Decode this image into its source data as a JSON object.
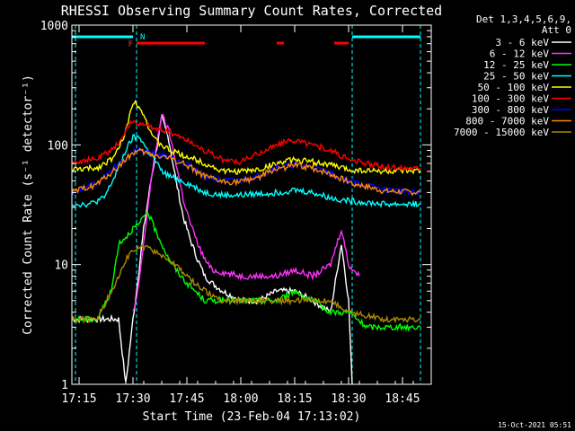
{
  "chart_data": {
    "type": "line",
    "title": "RHESSI Observing Summary Count Rates, Corrected",
    "xlabel": "Start Time (23-Feb-04 17:13:02)",
    "ylabel": "Corrected Count Rate (s⁻¹ detector⁻¹)",
    "y_scale": "log",
    "ylim": [
      1,
      1000
    ],
    "xlim": [
      "17:13",
      "18:53"
    ],
    "x_ticks": [
      "17:15",
      "17:30",
      "17:45",
      "18:00",
      "18:15",
      "18:30",
      "18:45"
    ],
    "y_ticks": [
      "1",
      "10",
      "100",
      "1000"
    ],
    "grid": false,
    "legend_position": "right",
    "legend_header": [
      "Det 1,3,4,5,6,9,",
      "Att 0"
    ],
    "footer_date": "15-Oct-2021 05:51",
    "bands": {
      "N_label": "N",
      "F_label": "F",
      "night": [
        [
          "17:13",
          "17:30"
        ],
        [
          "18:31",
          "18:50"
        ]
      ],
      "flare": [
        [
          "17:31",
          "17:50"
        ],
        [
          "18:10",
          "18:12"
        ],
        [
          "18:26",
          "18:30"
        ]
      ]
    },
    "boundaries": [
      "17:14",
      "17:31",
      "18:31",
      "18:50"
    ],
    "series": [
      {
        "name": "3 - 6 keV",
        "color": "#ffffff",
        "points": [
          [
            "17:13",
            3.5
          ],
          [
            "17:26",
            3.5
          ],
          [
            "17:28",
            1
          ],
          [
            "17:30",
            3.5
          ],
          [
            "17:31",
            6
          ],
          [
            "17:33",
            20
          ],
          [
            "17:35",
            50
          ],
          [
            "17:37",
            110
          ],
          [
            "17:38",
            170
          ],
          [
            "17:40",
            110
          ],
          [
            "17:42",
            50
          ],
          [
            "17:44",
            25
          ],
          [
            "17:46",
            16
          ],
          [
            "17:48",
            11
          ],
          [
            "17:50",
            8
          ],
          [
            "17:52",
            7
          ],
          [
            "17:55",
            6
          ],
          [
            "18:00",
            5
          ],
          [
            "18:05",
            5
          ],
          [
            "18:10",
            6
          ],
          [
            "18:15",
            6
          ],
          [
            "18:20",
            5
          ],
          [
            "18:25",
            4
          ],
          [
            "18:28",
            15
          ],
          [
            "18:30",
            5
          ],
          [
            "18:31",
            1
          ]
        ]
      },
      {
        "name": "6 - 12 keV",
        "color": "#ff30ff",
        "points": [
          [
            "17:30",
            4
          ],
          [
            "17:31",
            5
          ],
          [
            "17:33",
            15
          ],
          [
            "17:35",
            50
          ],
          [
            "17:37",
            120
          ],
          [
            "17:38",
            180
          ],
          [
            "17:40",
            130
          ],
          [
            "17:42",
            70
          ],
          [
            "17:44",
            35
          ],
          [
            "17:46",
            22
          ],
          [
            "17:48",
            15
          ],
          [
            "17:50",
            11
          ],
          [
            "17:52",
            9
          ],
          [
            "18:00",
            8
          ],
          [
            "18:10",
            8
          ],
          [
            "18:15",
            9
          ],
          [
            "18:20",
            8
          ],
          [
            "18:25",
            10
          ],
          [
            "18:28",
            20
          ],
          [
            "18:30",
            10
          ],
          [
            "18:33",
            8
          ]
        ]
      },
      {
        "name": "12 - 25 keV",
        "color": "#00ff00",
        "points": [
          [
            "17:13",
            3.5
          ],
          [
            "17:20",
            3.5
          ],
          [
            "17:24",
            6
          ],
          [
            "17:26",
            15
          ],
          [
            "17:28",
            17
          ],
          [
            "17:30",
            20
          ],
          [
            "17:32",
            22
          ],
          [
            "17:34",
            28
          ],
          [
            "17:36",
            20
          ],
          [
            "17:38",
            15
          ],
          [
            "17:40",
            11
          ],
          [
            "17:42",
            9
          ],
          [
            "17:45",
            7
          ],
          [
            "17:50",
            5
          ],
          [
            "17:55",
            5
          ],
          [
            "18:00",
            5
          ],
          [
            "18:10",
            5
          ],
          [
            "18:15",
            6
          ],
          [
            "18:20",
            5
          ],
          [
            "18:25",
            4
          ],
          [
            "18:30",
            4
          ],
          [
            "18:35",
            3
          ],
          [
            "18:40",
            3
          ],
          [
            "18:50",
            3
          ]
        ]
      },
      {
        "name": "25 - 50 keV",
        "color": "#00ffff",
        "points": [
          [
            "17:13",
            32
          ],
          [
            "17:18",
            32
          ],
          [
            "17:22",
            36
          ],
          [
            "17:25",
            55
          ],
          [
            "17:28",
            90
          ],
          [
            "17:30",
            115
          ],
          [
            "17:32",
            115
          ],
          [
            "17:34",
            90
          ],
          [
            "17:36",
            75
          ],
          [
            "17:38",
            60
          ],
          [
            "17:40",
            55
          ],
          [
            "17:45",
            48
          ],
          [
            "17:50",
            40
          ],
          [
            "17:55",
            38
          ],
          [
            "18:00",
            38
          ],
          [
            "18:10",
            40
          ],
          [
            "18:15",
            42
          ],
          [
            "18:20",
            40
          ],
          [
            "18:25",
            36
          ],
          [
            "18:30",
            34
          ],
          [
            "18:40",
            32
          ],
          [
            "18:50",
            32
          ]
        ]
      },
      {
        "name": "50 - 100 keV",
        "color": "#ffff00",
        "points": [
          [
            "17:13",
            62
          ],
          [
            "17:20",
            64
          ],
          [
            "17:25",
            80
          ],
          [
            "17:28",
            130
          ],
          [
            "17:30",
            230
          ],
          [
            "17:32",
            210
          ],
          [
            "17:34",
            150
          ],
          [
            "17:36",
            110
          ],
          [
            "17:40",
            90
          ],
          [
            "17:45",
            80
          ],
          [
            "17:50",
            70
          ],
          [
            "17:55",
            60
          ],
          [
            "18:00",
            60
          ],
          [
            "18:05",
            62
          ],
          [
            "18:10",
            70
          ],
          [
            "18:15",
            75
          ],
          [
            "18:20",
            72
          ],
          [
            "18:25",
            68
          ],
          [
            "18:30",
            62
          ],
          [
            "18:40",
            60
          ],
          [
            "18:50",
            60
          ]
        ]
      },
      {
        "name": "100 - 300 keV",
        "color": "#ff0000",
        "points": [
          [
            "17:13",
            72
          ],
          [
            "17:20",
            76
          ],
          [
            "17:25",
            95
          ],
          [
            "17:28",
            130
          ],
          [
            "17:30",
            160
          ],
          [
            "17:32",
            150
          ],
          [
            "17:35",
            140
          ],
          [
            "17:40",
            130
          ],
          [
            "17:45",
            110
          ],
          [
            "17:50",
            90
          ],
          [
            "17:55",
            75
          ],
          [
            "18:00",
            72
          ],
          [
            "18:05",
            85
          ],
          [
            "18:10",
            100
          ],
          [
            "18:15",
            110
          ],
          [
            "18:20",
            100
          ],
          [
            "18:25",
            90
          ],
          [
            "18:30",
            75
          ],
          [
            "18:40",
            65
          ],
          [
            "18:50",
            64
          ]
        ]
      },
      {
        "name": "300 - 800 keV",
        "color": "#0000ff",
        "points": [
          [
            "17:13",
            40
          ],
          [
            "17:20",
            48
          ],
          [
            "17:25",
            65
          ],
          [
            "17:30",
            88
          ],
          [
            "17:32",
            90
          ],
          [
            "17:35",
            85
          ],
          [
            "17:40",
            80
          ],
          [
            "17:45",
            70
          ],
          [
            "17:50",
            55
          ],
          [
            "17:55",
            50
          ],
          [
            "18:00",
            50
          ],
          [
            "18:05",
            55
          ],
          [
            "18:10",
            65
          ],
          [
            "18:15",
            68
          ],
          [
            "18:20",
            65
          ],
          [
            "18:25",
            58
          ],
          [
            "18:30",
            50
          ],
          [
            "18:40",
            42
          ],
          [
            "18:50",
            40
          ]
        ]
      },
      {
        "name": "800 - 7000 keV",
        "color": "#ff8800",
        "points": [
          [
            "17:13",
            40
          ],
          [
            "17:20",
            47
          ],
          [
            "17:25",
            62
          ],
          [
            "17:30",
            86
          ],
          [
            "17:32",
            88
          ],
          [
            "17:35",
            83
          ],
          [
            "17:40",
            78
          ],
          [
            "17:45",
            68
          ],
          [
            "17:50",
            54
          ],
          [
            "17:55",
            49
          ],
          [
            "18:00",
            49
          ],
          [
            "18:05",
            54
          ],
          [
            "18:10",
            63
          ],
          [
            "18:15",
            67
          ],
          [
            "18:20",
            64
          ],
          [
            "18:25",
            57
          ],
          [
            "18:30",
            49
          ],
          [
            "18:40",
            41
          ],
          [
            "18:50",
            40
          ]
        ]
      },
      {
        "name": "7000 - 15000 keV",
        "color": "#aa8800",
        "points": [
          [
            "17:13",
            3.5
          ],
          [
            "17:20",
            3.5
          ],
          [
            "17:24",
            6
          ],
          [
            "17:28",
            11
          ],
          [
            "17:30",
            13
          ],
          [
            "17:33",
            14
          ],
          [
            "17:36",
            13
          ],
          [
            "17:40",
            11
          ],
          [
            "17:45",
            8
          ],
          [
            "17:50",
            6
          ],
          [
            "17:55",
            5
          ],
          [
            "18:00",
            5
          ],
          [
            "18:10",
            5
          ],
          [
            "18:20",
            5
          ],
          [
            "18:25",
            5
          ],
          [
            "18:30",
            4
          ],
          [
            "18:40",
            3.5
          ],
          [
            "18:50",
            3.5
          ]
        ]
      }
    ]
  }
}
